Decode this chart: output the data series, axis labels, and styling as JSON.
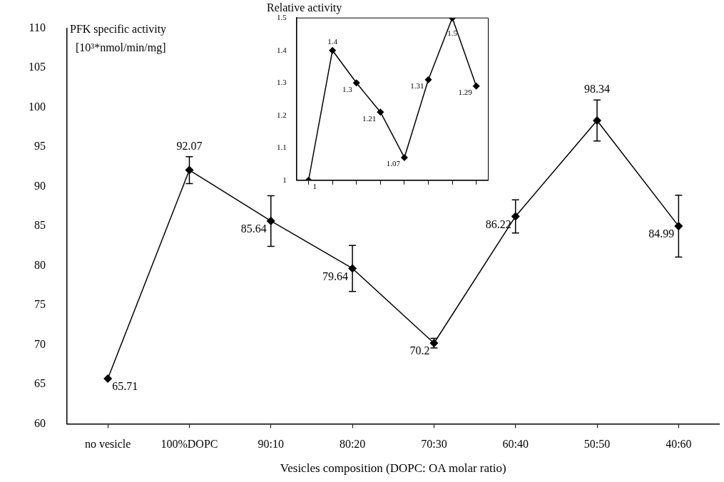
{
  "chart_data": [
    {
      "type": "line",
      "title": "Relative activity",
      "categories": [
        null,
        null,
        null,
        null,
        null,
        null,
        null,
        null
      ],
      "series": [
        {
          "color": "#000000",
          "values": [
            1,
            1.4,
            1.3,
            1.21,
            1.07,
            1.31,
            1.5,
            1.29
          ]
        }
      ],
      "ylim": [
        1,
        1.5
      ],
      "yticks": [
        1,
        1.1,
        1.2,
        1.3,
        1.4,
        1.5
      ],
      "tick_labels": "y",
      "grid": false,
      "legend": false,
      "marker": "diamond",
      "line_style": "solid",
      "data_labels": true
    },
    {
      "type": "line",
      "xlabel": "Vesicles composition (DOPC: OA molar ratio)",
      "ylabel": "PFK specific activity [10³*nmol/min/mg]",
      "categories": [
        "no vesicle",
        "100%DOPC",
        "90:10",
        "80:20",
        "70:30",
        "60:40",
        "50:50",
        "40:60"
      ],
      "series": [
        {
          "color": "#000000",
          "values": [
            65.71,
            92.07,
            85.64,
            79.64,
            70.2,
            86.22,
            98.34,
            84.99
          ],
          "errors": [
            null,
            1.7,
            3.2,
            2.9,
            0.6,
            2.1,
            2.6,
            3.9
          ]
        }
      ],
      "ylim": [
        60,
        110
      ],
      "yticks": [
        60,
        65,
        70,
        75,
        80,
        85,
        90,
        95,
        100,
        105,
        110
      ],
      "grid": false,
      "legend": false,
      "marker": "diamond",
      "line_style": "solid",
      "data_labels": true
    }
  ]
}
